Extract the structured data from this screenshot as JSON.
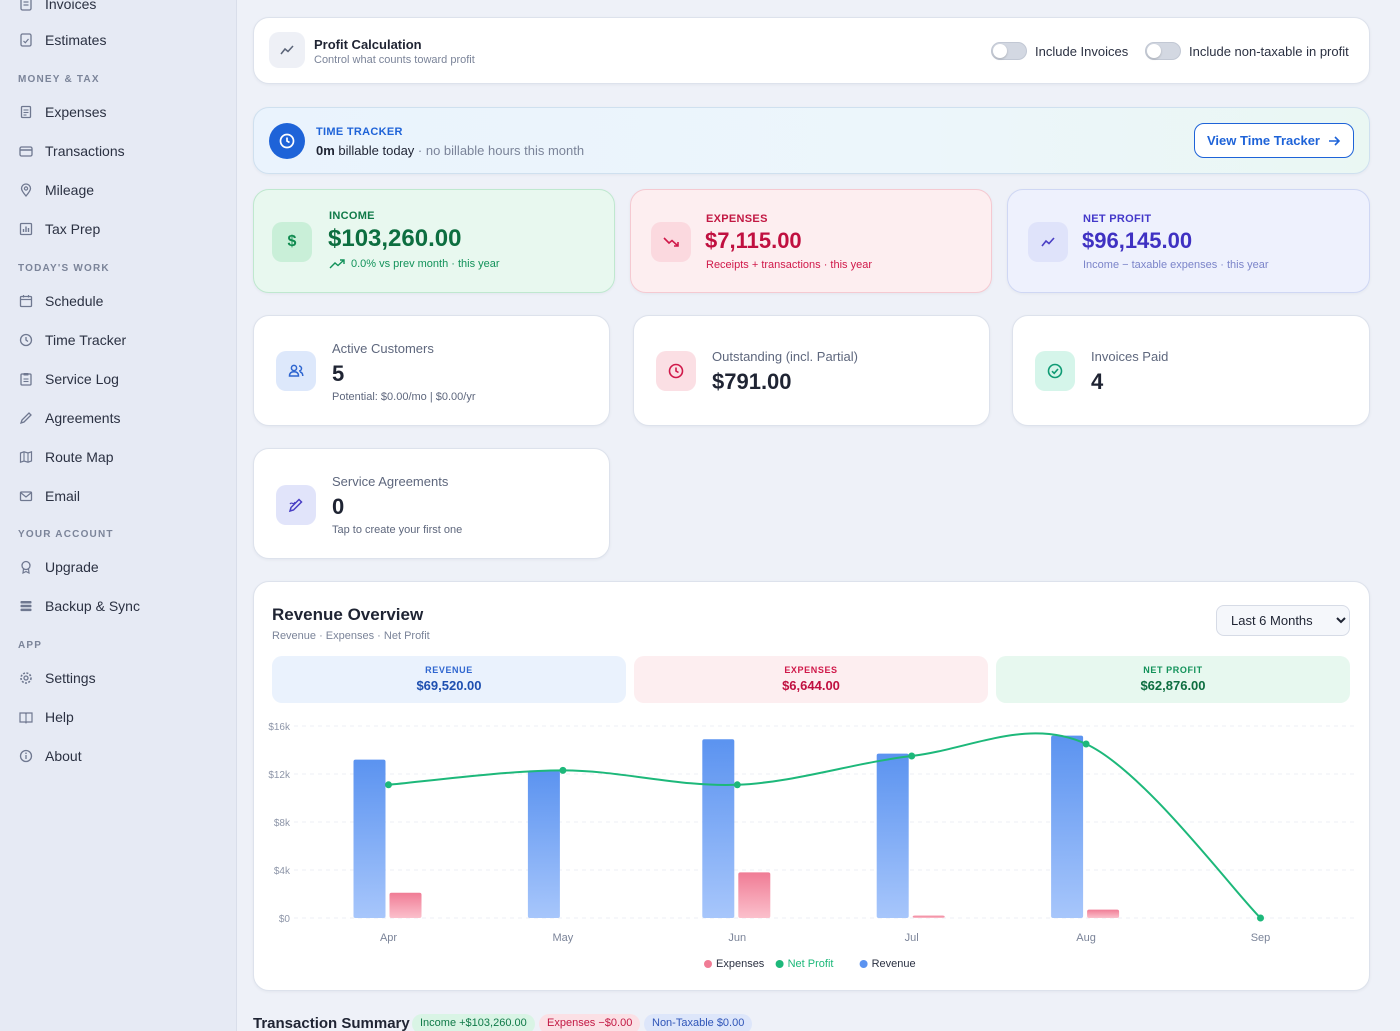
{
  "sidebar": {
    "top_items": [
      {
        "label": "Invoices",
        "icon": "invoice-icon"
      },
      {
        "label": "Estimates",
        "icon": "estimate-icon"
      }
    ],
    "sections": [
      {
        "title": "MONEY & TAX",
        "items": [
          {
            "label": "Expenses",
            "icon": "receipt-icon"
          },
          {
            "label": "Transactions",
            "icon": "card-icon"
          },
          {
            "label": "Mileage",
            "icon": "location-pin-icon"
          },
          {
            "label": "Tax Prep",
            "icon": "chart-icon"
          }
        ]
      },
      {
        "title": "TODAY'S WORK",
        "items": [
          {
            "label": "Schedule",
            "icon": "calendar-icon"
          },
          {
            "label": "Time Tracker",
            "icon": "clock-icon"
          },
          {
            "label": "Service Log",
            "icon": "clipboard-icon"
          },
          {
            "label": "Agreements",
            "icon": "pen-icon"
          },
          {
            "label": "Route Map",
            "icon": "map-icon"
          },
          {
            "label": "Email",
            "icon": "mail-icon"
          }
        ]
      },
      {
        "title": "YOUR ACCOUNT",
        "items": [
          {
            "label": "Upgrade",
            "icon": "badge-icon"
          },
          {
            "label": "Backup & Sync",
            "icon": "database-icon"
          }
        ]
      },
      {
        "title": "APP",
        "items": [
          {
            "label": "Settings",
            "icon": "gear-icon"
          },
          {
            "label": "Help",
            "icon": "book-icon"
          },
          {
            "label": "About",
            "icon": "info-icon"
          }
        ]
      }
    ]
  },
  "profit_calc": {
    "title": "Profit Calculation",
    "subtitle": "Control what counts toward profit",
    "toggle1": "Include Invoices",
    "toggle2": "Include non-taxable in profit"
  },
  "time_tracker": {
    "label": "TIME TRACKER",
    "bold": "0m",
    "text": " billable today",
    "muted": " · no billable hours this month",
    "button": "View Time Tracker"
  },
  "stats": {
    "income": {
      "label": "INCOME",
      "value": "$103,260.00",
      "sub": "0.0% vs prev month · this year"
    },
    "expenses": {
      "label": "EXPENSES",
      "value": "$7,115.00",
      "sub": "Receipts + transactions · this year"
    },
    "net": {
      "label": "NET PROFIT",
      "value": "$96,145.00",
      "sub": "Income − taxable expenses · this year"
    }
  },
  "metrics": {
    "customers": {
      "label": "Active Customers",
      "value": "5",
      "sub": "Potential: $0.00/mo | $0.00/yr"
    },
    "outstanding": {
      "label": "Outstanding (incl. Partial)",
      "value": "$791.00"
    },
    "paid": {
      "label": "Invoices Paid",
      "value": "4"
    },
    "agreements": {
      "label": "Service Agreements",
      "value": "0",
      "sub": "Tap to create your first one"
    }
  },
  "revenue": {
    "title": "Revenue Overview",
    "subtitle": "Revenue · Expenses · Net Profit",
    "period": "Last 6 Months",
    "summary": [
      {
        "label": "REVENUE",
        "value": "$69,520.00"
      },
      {
        "label": "EXPENSES",
        "value": "$6,644.00"
      },
      {
        "label": "NET PROFIT",
        "value": "$62,876.00"
      }
    ]
  },
  "chart_data": {
    "type": "bar",
    "categories": [
      "Apr",
      "May",
      "Jun",
      "Jul",
      "Aug",
      "Sep"
    ],
    "series": [
      {
        "name": "Revenue",
        "type": "bar",
        "color": "#5b93f0",
        "values": [
          13200,
          12300,
          14900,
          13700,
          15200,
          0
        ]
      },
      {
        "name": "Expenses",
        "type": "bar",
        "color": "#f07c95",
        "values": [
          2100,
          0,
          3800,
          200,
          700,
          0
        ]
      },
      {
        "name": "Net Profit",
        "type": "line",
        "color": "#1db87a",
        "values": [
          11100,
          12300,
          11100,
          13500,
          14500,
          0
        ]
      }
    ],
    "y_ticks": [
      "$0",
      "$4k",
      "$8k",
      "$12k",
      "$16k"
    ],
    "ylim": [
      0,
      16000
    ],
    "grid": true,
    "legend_placement": "bottom",
    "legend": [
      "Expenses",
      "Net Profit",
      "Revenue"
    ]
  },
  "transaction_summary": {
    "title": "Transaction Summary",
    "pills": [
      "Income +$103,260.00",
      "Expenses −$0.00",
      "Non-Taxable $0.00"
    ]
  }
}
